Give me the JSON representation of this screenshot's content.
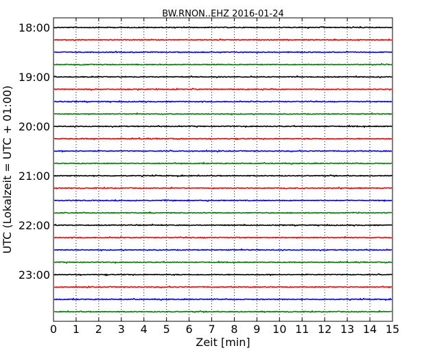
{
  "chart_data": {
    "type": "line",
    "title": "BW.RNON..EHZ 2016-01-24",
    "xlabel": "Zeit  [min]",
    "ylabel": "UTC (Lokalzeit = UTC + 01:00)",
    "xlim": [
      0,
      15
    ],
    "x_ticks": [
      "0",
      "1",
      "2",
      "3",
      "4",
      "5",
      "6",
      "7",
      "8",
      "9",
      "10",
      "11",
      "12",
      "13",
      "14",
      "15"
    ],
    "y_tick_labels": [
      "18:00",
      "19:00",
      "20:00",
      "21:00",
      "22:00",
      "23:00"
    ],
    "grid": "vertical-dotted",
    "trace_colors": [
      "#000000",
      "#ff0000",
      "#0000ff",
      "#008000"
    ],
    "traces": [
      "18:00",
      "18:15",
      "18:30",
      "18:45",
      "19:00",
      "19:15",
      "19:30",
      "19:45",
      "20:00",
      "20:15",
      "20:30",
      "20:45",
      "21:00",
      "21:15",
      "21:30",
      "21:45",
      "22:00",
      "22:15",
      "22:30",
      "22:45",
      "23:00",
      "23:15",
      "23:30",
      "23:45"
    ]
  }
}
